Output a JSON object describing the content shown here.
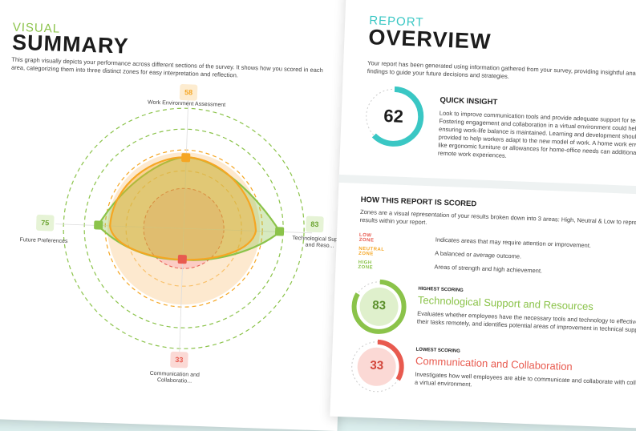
{
  "summary": {
    "kicker": "VISUAL",
    "title": "SUMMARY",
    "description": "This graph visually depicts your performance across different sections of the survey. It shows how you scored in each area, categorizing them into three distinct zones for easy interpretation and reflection.",
    "axes": [
      {
        "label": "Work Environment Assessment",
        "score": "58",
        "color": "#f5a623"
      },
      {
        "label": "Technological Support and Reso...",
        "score": "83",
        "color": "#8bc34a"
      },
      {
        "label": "Communication and Collaboratio...",
        "score": "33",
        "color": "#e85a4f"
      },
      {
        "label": "Future Preferences",
        "score": "75",
        "color": "#8bc34a"
      }
    ]
  },
  "overview": {
    "kicker": "REPORT",
    "title": "OVERVIEW",
    "intro": "Your report has been generated using information gathered from your survey, providing insightful analysis and findings to guide your future decisions and strategies.",
    "score": "62",
    "score_fraction": 0.62,
    "quick_insight_title": "QUICK INSIGHT",
    "quick_insight_text": "Look to improve communication tools and provide adequate support for technology. Fostering engagement and collaboration in a virtual environment could help, as well as ensuring work-life balance is maintained. Learning and development should also be provided to help workers adapt to the new model of work. A home work environment, like ergonomic furniture or allowances for home-office needs can additionally improve remote work experiences."
  },
  "scoring": {
    "title": "HOW THIS REPORT IS SCORED",
    "intro": "Zones are a visual representation of your results broken down into 3 areas: High, Neutral & Low to represent your results within your report.",
    "zones": [
      {
        "name": "LOW ZONE",
        "desc": "Indicates areas that may require attention or improvement.",
        "color": "#e85a4f"
      },
      {
        "name": "NEUTRAL ZONE",
        "desc": "A balanced or average outcome.",
        "color": "#f5a623"
      },
      {
        "name": "HIGH ZONE",
        "desc": "Areas of strength and high achievement.",
        "color": "#8bc34a"
      }
    ]
  },
  "highest": {
    "kicker": "HIGHEST SCORING",
    "title": "Technological Support and Resources",
    "score": "83",
    "score_fraction": 0.83,
    "text": "Evaluates whether employees have the necessary tools and technology to effectively perform their tasks remotely, and identifies potential areas of improvement in technical support.",
    "color": "#8bc34a"
  },
  "lowest": {
    "kicker": "LOWEST SCORING",
    "title": "Communication and Collaboration",
    "score": "33",
    "score_fraction": 0.33,
    "text": "Investigates how well employees are able to communicate and collaborate with colleagues in a virtual environment.",
    "color": "#e85a4f"
  },
  "colors": {
    "teal": "#3ac7c4",
    "low": "#e85a4f",
    "neutral": "#f5a623",
    "high": "#8bc34a"
  }
}
